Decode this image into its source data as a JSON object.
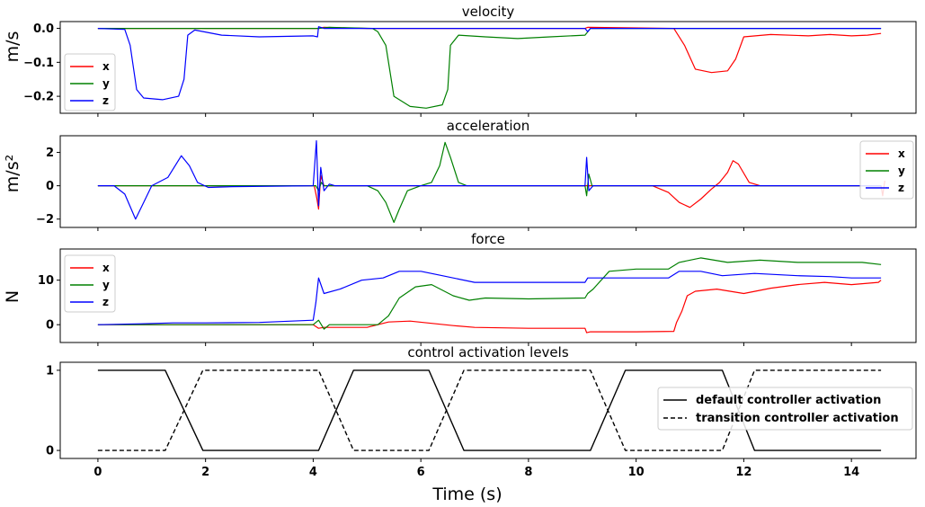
{
  "figure": {
    "xlabel": "Time (s)",
    "xticks": [
      0,
      2,
      4,
      6,
      8,
      10,
      12,
      14
    ],
    "xlim": [
      -0.7,
      15.2
    ]
  },
  "chart_data": [
    {
      "type": "line",
      "title": "velocity",
      "ylabel": "m/s",
      "ylim": [
        -0.25,
        0.02
      ],
      "yticks": [
        0.0,
        -0.1,
        -0.2
      ],
      "ytick_labels": [
        "0.0",
        "−0.1",
        "−0.2"
      ],
      "legend_position": "middle-left",
      "series": [
        {
          "name": "x",
          "color": "#ff0000",
          "points": [
            [
              0,
              0
            ],
            [
              4.1,
              0
            ],
            [
              4.2,
              0.003
            ],
            [
              5,
              0
            ],
            [
              9.05,
              0
            ],
            [
              9.1,
              0.003
            ],
            [
              10.7,
              0
            ],
            [
              10.9,
              -0.05
            ],
            [
              11.1,
              -0.12
            ],
            [
              11.4,
              -0.13
            ],
            [
              11.7,
              -0.125
            ],
            [
              11.85,
              -0.09
            ],
            [
              12.0,
              -0.025
            ],
            [
              12.5,
              -0.018
            ],
            [
              13.2,
              -0.022
            ],
            [
              13.6,
              -0.018
            ],
            [
              14.0,
              -0.022
            ],
            [
              14.3,
              -0.02
            ],
            [
              14.55,
              -0.015
            ]
          ]
        },
        {
          "name": "y",
          "color": "#008000",
          "points": [
            [
              0,
              0
            ],
            [
              4.1,
              0
            ],
            [
              4.3,
              0.003
            ],
            [
              5.1,
              0
            ],
            [
              5.2,
              -0.01
            ],
            [
              5.35,
              -0.05
            ],
            [
              5.5,
              -0.2
            ],
            [
              5.8,
              -0.23
            ],
            [
              6.1,
              -0.235
            ],
            [
              6.4,
              -0.225
            ],
            [
              6.5,
              -0.18
            ],
            [
              6.55,
              -0.05
            ],
            [
              6.7,
              -0.02
            ],
            [
              7.2,
              -0.025
            ],
            [
              7.8,
              -0.03
            ],
            [
              8.4,
              -0.025
            ],
            [
              9.05,
              -0.02
            ],
            [
              9.15,
              0
            ],
            [
              14.55,
              0
            ]
          ]
        },
        {
          "name": "z",
          "color": "#0000ff",
          "points": [
            [
              0,
              0
            ],
            [
              0.5,
              -0.003
            ],
            [
              0.6,
              -0.05
            ],
            [
              0.72,
              -0.18
            ],
            [
              0.85,
              -0.205
            ],
            [
              1.2,
              -0.21
            ],
            [
              1.5,
              -0.2
            ],
            [
              1.6,
              -0.15
            ],
            [
              1.67,
              -0.02
            ],
            [
              1.8,
              -0.005
            ],
            [
              2.3,
              -0.02
            ],
            [
              3.0,
              -0.025
            ],
            [
              4.0,
              -0.022
            ],
            [
              4.08,
              -0.025
            ],
            [
              4.1,
              0.005
            ],
            [
              4.2,
              0
            ],
            [
              9.05,
              0
            ],
            [
              9.1,
              -0.01
            ],
            [
              9.15,
              0
            ],
            [
              14.55,
              0
            ]
          ]
        }
      ]
    },
    {
      "type": "line",
      "title": "acceleration",
      "ylabel": "m/s²",
      "ylim": [
        -2.5,
        3.0
      ],
      "yticks": [
        2,
        0,
        -2
      ],
      "ytick_labels": [
        "2",
        "0",
        "−2"
      ],
      "legend_position": "top-right",
      "series": [
        {
          "name": "x",
          "color": "#ff0000",
          "points": [
            [
              0,
              0
            ],
            [
              4.02,
              0
            ],
            [
              4.07,
              -0.8
            ],
            [
              4.1,
              -1.4
            ],
            [
              4.14,
              0.6
            ],
            [
              4.2,
              0
            ],
            [
              10.3,
              0
            ],
            [
              10.6,
              -0.4
            ],
            [
              10.8,
              -1.0
            ],
            [
              11.0,
              -1.3
            ],
            [
              11.2,
              -0.8
            ],
            [
              11.4,
              -0.2
            ],
            [
              11.55,
              0.2
            ],
            [
              11.7,
              0.8
            ],
            [
              11.8,
              1.5
            ],
            [
              11.9,
              1.3
            ],
            [
              12.1,
              0.2
            ],
            [
              12.3,
              0
            ],
            [
              14.55,
              0
            ],
            [
              14.58,
              -0.6
            ],
            [
              14.62,
              0.3
            ]
          ]
        },
        {
          "name": "y",
          "color": "#008000",
          "points": [
            [
              0,
              0
            ],
            [
              4.05,
              0
            ],
            [
              4.1,
              -0.3
            ],
            [
              4.15,
              0.2
            ],
            [
              4.2,
              0
            ],
            [
              5.0,
              0
            ],
            [
              5.2,
              -0.3
            ],
            [
              5.35,
              -1.0
            ],
            [
              5.5,
              -2.2
            ],
            [
              5.6,
              -1.4
            ],
            [
              5.75,
              -0.3
            ],
            [
              6.0,
              0
            ],
            [
              6.2,
              0.2
            ],
            [
              6.35,
              1.2
            ],
            [
              6.45,
              2.6
            ],
            [
              6.55,
              1.7
            ],
            [
              6.7,
              0.2
            ],
            [
              6.85,
              0
            ],
            [
              9.05,
              0
            ],
            [
              9.08,
              -0.6
            ],
            [
              9.12,
              0.7
            ],
            [
              9.18,
              0
            ],
            [
              14.55,
              0
            ]
          ]
        },
        {
          "name": "z",
          "color": "#0000ff",
          "points": [
            [
              0,
              0
            ],
            [
              0.3,
              0
            ],
            [
              0.5,
              -0.5
            ],
            [
              0.7,
              -2.0
            ],
            [
              0.85,
              -1.0
            ],
            [
              1.0,
              0
            ],
            [
              1.3,
              0.5
            ],
            [
              1.55,
              1.8
            ],
            [
              1.7,
              1.2
            ],
            [
              1.85,
              0.2
            ],
            [
              2.05,
              -0.1
            ],
            [
              2.5,
              -0.05
            ],
            [
              4.0,
              0
            ],
            [
              4.06,
              2.7
            ],
            [
              4.1,
              -1.2
            ],
            [
              4.14,
              1.1
            ],
            [
              4.2,
              -0.3
            ],
            [
              4.3,
              0.1
            ],
            [
              4.4,
              0
            ],
            [
              9.05,
              0
            ],
            [
              9.08,
              1.7
            ],
            [
              9.12,
              -0.3
            ],
            [
              9.2,
              0
            ],
            [
              14.55,
              0
            ]
          ]
        }
      ]
    },
    {
      "type": "line",
      "title": "force",
      "ylabel": "N",
      "ylim": [
        -4,
        17
      ],
      "yticks": [
        10,
        0
      ],
      "ytick_labels": [
        "10",
        "0"
      ],
      "legend_position": "top-left",
      "series": [
        {
          "name": "x",
          "color": "#ff0000",
          "points": [
            [
              0,
              0
            ],
            [
              4.0,
              0
            ],
            [
              4.1,
              -0.8
            ],
            [
              4.2,
              -0.6
            ],
            [
              5.0,
              -0.6
            ],
            [
              5.4,
              0.6
            ],
            [
              5.8,
              0.8
            ],
            [
              6.2,
              0.3
            ],
            [
              6.6,
              -0.2
            ],
            [
              7.0,
              -0.6
            ],
            [
              8.0,
              -0.8
            ],
            [
              9.05,
              -0.8
            ],
            [
              9.08,
              -1.8
            ],
            [
              9.15,
              -1.6
            ],
            [
              10.0,
              -1.6
            ],
            [
              10.7,
              -1.5
            ],
            [
              10.75,
              0.5
            ],
            [
              10.85,
              3.0
            ],
            [
              10.95,
              6.5
            ],
            [
              11.1,
              7.5
            ],
            [
              11.5,
              8.0
            ],
            [
              12.0,
              7.0
            ],
            [
              12.5,
              8.2
            ],
            [
              13.0,
              9.0
            ],
            [
              13.5,
              9.5
            ],
            [
              14.0,
              9.0
            ],
            [
              14.5,
              9.5
            ],
            [
              14.55,
              10.0
            ]
          ]
        },
        {
          "name": "y",
          "color": "#008000",
          "points": [
            [
              0,
              0
            ],
            [
              4.0,
              0
            ],
            [
              4.1,
              1.0
            ],
            [
              4.2,
              -1.0
            ],
            [
              4.3,
              0
            ],
            [
              5.2,
              0
            ],
            [
              5.4,
              2.0
            ],
            [
              5.6,
              6.0
            ],
            [
              5.9,
              8.5
            ],
            [
              6.2,
              9.0
            ],
            [
              6.6,
              6.5
            ],
            [
              6.9,
              5.5
            ],
            [
              7.2,
              6.0
            ],
            [
              8.0,
              5.8
            ],
            [
              9.05,
              6.0
            ],
            [
              9.1,
              7.0
            ],
            [
              9.2,
              8.0
            ],
            [
              9.5,
              12.0
            ],
            [
              10.0,
              12.5
            ],
            [
              10.6,
              12.5
            ],
            [
              10.8,
              14.0
            ],
            [
              11.2,
              15.0
            ],
            [
              11.7,
              14.0
            ],
            [
              12.3,
              14.5
            ],
            [
              13.0,
              14.0
            ],
            [
              13.6,
              14.0
            ],
            [
              14.2,
              14.0
            ],
            [
              14.55,
              13.5
            ]
          ]
        },
        {
          "name": "z",
          "color": "#0000ff",
          "points": [
            [
              0,
              0
            ],
            [
              0.8,
              0.2
            ],
            [
              1.4,
              0.4
            ],
            [
              2.0,
              0.4
            ],
            [
              3.0,
              0.5
            ],
            [
              4.0,
              1.0
            ],
            [
              4.05,
              5.0
            ],
            [
              4.1,
              10.5
            ],
            [
              4.2,
              7.0
            ],
            [
              4.5,
              8.0
            ],
            [
              4.9,
              10.0
            ],
            [
              5.3,
              10.5
            ],
            [
              5.6,
              12.0
            ],
            [
              6.0,
              12.0
            ],
            [
              6.4,
              11.0
            ],
            [
              7.0,
              9.5
            ],
            [
              8.0,
              9.5
            ],
            [
              9.05,
              9.5
            ],
            [
              9.1,
              10.5
            ],
            [
              9.3,
              10.5
            ],
            [
              10.0,
              10.5
            ],
            [
              10.6,
              10.5
            ],
            [
              10.8,
              12.0
            ],
            [
              11.2,
              12.0
            ],
            [
              11.6,
              11.0
            ],
            [
              12.2,
              11.5
            ],
            [
              13.0,
              11.0
            ],
            [
              13.6,
              10.8
            ],
            [
              14.0,
              10.5
            ],
            [
              14.55,
              10.5
            ]
          ]
        }
      ]
    },
    {
      "type": "line",
      "title": "control activation levels",
      "ylabel": "",
      "ylim": [
        -0.1,
        1.1
      ],
      "yticks": [
        1,
        0
      ],
      "ytick_labels": [
        "1",
        "0"
      ],
      "legend_position": "right",
      "series": [
        {
          "name": "default controller activation",
          "color": "#000000",
          "dash": "solid",
          "points": [
            [
              0,
              1
            ],
            [
              1.25,
              1
            ],
            [
              1.95,
              0
            ],
            [
              4.1,
              0
            ],
            [
              4.75,
              1
            ],
            [
              6.15,
              1
            ],
            [
              6.8,
              0
            ],
            [
              9.15,
              0
            ],
            [
              9.8,
              1
            ],
            [
              11.6,
              1
            ],
            [
              12.2,
              0
            ],
            [
              14.55,
              0
            ]
          ]
        },
        {
          "name": "transition controller activation",
          "color": "#000000",
          "dash": "dashed",
          "points": [
            [
              0,
              0
            ],
            [
              1.25,
              0
            ],
            [
              1.95,
              1
            ],
            [
              4.1,
              1
            ],
            [
              4.75,
              0
            ],
            [
              6.15,
              0
            ],
            [
              6.8,
              1
            ],
            [
              9.15,
              1
            ],
            [
              9.8,
              0
            ],
            [
              11.6,
              0
            ],
            [
              12.2,
              1
            ],
            [
              14.55,
              1
            ]
          ]
        }
      ]
    }
  ]
}
